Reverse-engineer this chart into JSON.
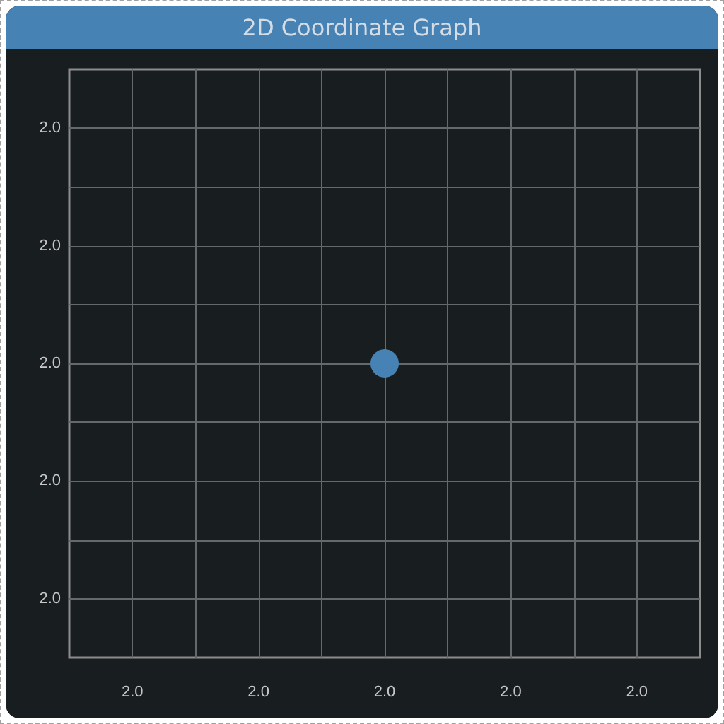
{
  "chart_data": {
    "type": "scatter",
    "title": "2D Coordinate Graph",
    "x": [
      2.0
    ],
    "values": [
      2.0
    ],
    "color": "#4682b4",
    "marker": "circle",
    "xlim": [
      1.95,
      2.05
    ],
    "ylim": [
      1.95,
      2.05
    ],
    "xticks": [
      {
        "value": 1.96,
        "label": "2.0"
      },
      {
        "value": 1.97,
        "label": null
      },
      {
        "value": 1.98,
        "label": "2.0"
      },
      {
        "value": 1.99,
        "label": null
      },
      {
        "value": 2.0,
        "label": "2.0"
      },
      {
        "value": 2.01,
        "label": null
      },
      {
        "value": 2.02,
        "label": "2.0"
      },
      {
        "value": 2.03,
        "label": null
      },
      {
        "value": 2.04,
        "label": "2.0"
      }
    ],
    "yticks": [
      {
        "value": 1.96,
        "label": "2.0"
      },
      {
        "value": 1.97,
        "label": null
      },
      {
        "value": 1.98,
        "label": "2.0"
      },
      {
        "value": 1.99,
        "label": null
      },
      {
        "value": 2.0,
        "label": "2.0"
      },
      {
        "value": 2.01,
        "label": null
      },
      {
        "value": 2.02,
        "label": "2.0"
      },
      {
        "value": 2.03,
        "label": null
      },
      {
        "value": 2.04,
        "label": "2.0"
      }
    ],
    "grid": true
  }
}
